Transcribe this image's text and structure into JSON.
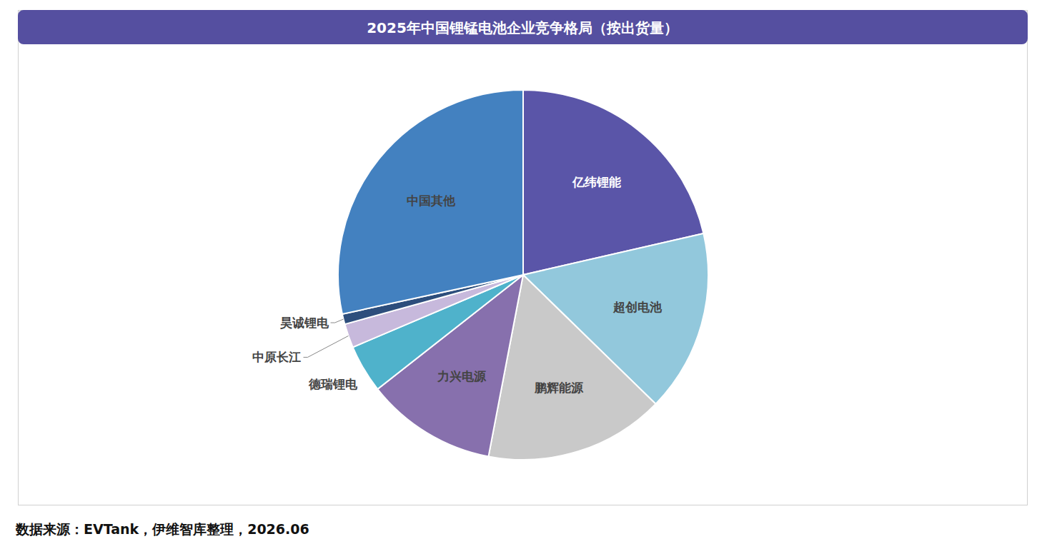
{
  "chart_data": {
    "type": "pie",
    "title": "2025年中国锂锰电池企业竞争格局（按出货量）",
    "source": "数据来源：EVTank，伊维智库整理，2026.06",
    "categories": [
      "亿纬锂能",
      "超创电池",
      "鹏辉能源",
      "力兴电源",
      "德瑞锂电",
      "中原长江",
      "昊诚锂电",
      "中国其他"
    ],
    "values": [
      21.4,
      15.9,
      15.7,
      11.4,
      4.2,
      2.1,
      0.9,
      28.4
    ],
    "colors": [
      "#5a55a8",
      "#92c8dc",
      "#c9c9c9",
      "#8770ad",
      "#4fb2cb",
      "#c7b9dc",
      "#2d4e7c",
      "#4381c0"
    ],
    "data_labels": false
  }
}
